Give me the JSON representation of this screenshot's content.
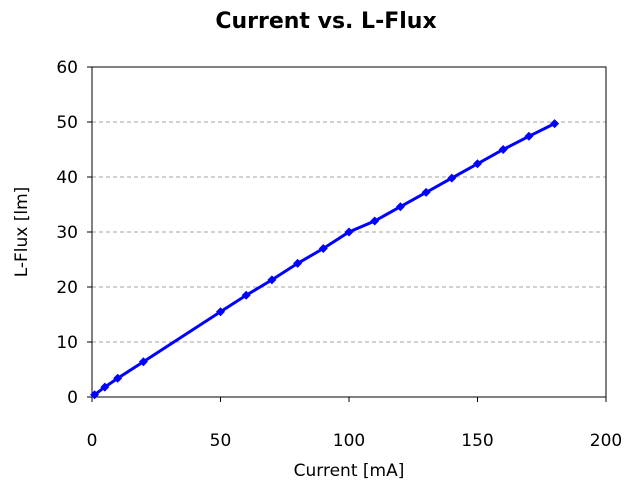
{
  "chart_data": {
    "type": "line",
    "title": "Current vs. L-Flux",
    "xlabel": "Current [mA]",
    "ylabel": "L-Flux [lm]",
    "xlim": [
      0,
      200
    ],
    "ylim": [
      0,
      60
    ],
    "xticks": [
      "0",
      "50",
      "100",
      "150",
      "200"
    ],
    "yticks": [
      "0",
      "10",
      "20",
      "30",
      "40",
      "50",
      "60"
    ],
    "grid": "horizontal-dashed",
    "legend": "none",
    "series": [
      {
        "color": "#0000ff",
        "x": [
          1,
          5,
          10,
          20,
          50,
          60,
          70,
          80,
          90,
          100,
          110,
          120,
          130,
          140,
          150,
          160,
          170,
          180
        ],
        "y": [
          0.4,
          1.8,
          3.4,
          6.4,
          15.5,
          18.5,
          21.3,
          24.3,
          27.0,
          30.0,
          32.0,
          34.6,
          37.2,
          39.8,
          42.4,
          45.0,
          47.4,
          49.7
        ]
      }
    ]
  }
}
